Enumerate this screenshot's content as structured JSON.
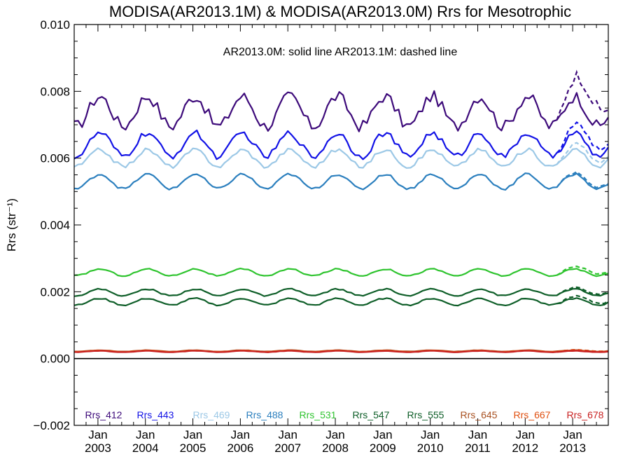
{
  "chart_data": {
    "type": "line",
    "title": "MODISA(AR2013.1M) & MODISA(AR2013.0M)  Rrs for Mesotrophic",
    "annotation": "AR2013.0M: solid line   AR2013.1M: dashed line",
    "ylabel": "Rrs (str⁻¹)",
    "ylim": [
      -0.002,
      0.01
    ],
    "xlim": [
      "2002-07",
      "2013-10"
    ],
    "yticks": [
      "−0.002",
      "0.000",
      "0.002",
      "0.004",
      "0.006",
      "0.008",
      "0.010"
    ],
    "xticks": [
      {
        "month": "Jan",
        "year": "2003"
      },
      {
        "month": "Jan",
        "year": "2004"
      },
      {
        "month": "Jan",
        "year": "2005"
      },
      {
        "month": "Jan",
        "year": "2006"
      },
      {
        "month": "Jan",
        "year": "2007"
      },
      {
        "month": "Jan",
        "year": "2008"
      },
      {
        "month": "Jan",
        "year": "2009"
      },
      {
        "month": "Jan",
        "year": "2010"
      },
      {
        "month": "Jan",
        "year": "2011"
      },
      {
        "month": "Jan",
        "year": "2012"
      },
      {
        "month": "Jan",
        "year": "2013"
      }
    ],
    "legend": "bottom",
    "series": [
      {
        "name": "Rrs_412",
        "color": "#3d0a7a",
        "mean": 0.0074,
        "amp": 0.00045,
        "noise": 0.00018,
        "dev": 0.0007
      },
      {
        "name": "Rrs_443",
        "color": "#1212e6",
        "mean": 0.0064,
        "amp": 0.00035,
        "noise": 0.0001,
        "dev": 0.0005
      },
      {
        "name": "Rrs_469",
        "color": "#9cc8e6",
        "mean": 0.006,
        "amp": 0.00025,
        "noise": 6e-05,
        "dev": 0.0002
      },
      {
        "name": "Rrs_488",
        "color": "#2b7fbe",
        "mean": 0.0053,
        "amp": 0.00022,
        "noise": 4e-05,
        "dev": 0.0001
      },
      {
        "name": "Rrs_531",
        "color": "#2fc42f",
        "mean": 0.00258,
        "amp": 0.0001,
        "noise": 2e-05,
        "dev": 8e-05
      },
      {
        "name": "Rrs_547",
        "color": "#0e5e28",
        "mean": 0.00198,
        "amp": 0.0001,
        "noise": 2e-05,
        "dev": 8e-05
      },
      {
        "name": "Rrs_555",
        "color": "#0e5e28",
        "mean": 0.0017,
        "amp": 0.0001,
        "noise": 2e-05,
        "dev": 8e-05
      },
      {
        "name": "Rrs_645",
        "color": "#a85020",
        "mean": 0.00023,
        "amp": 2e-05,
        "noise": 5e-06,
        "dev": 2e-05
      },
      {
        "name": "Rrs_667",
        "color": "#e05010",
        "mean": 0.00022,
        "amp": 2e-05,
        "noise": 5e-06,
        "dev": 2e-05
      },
      {
        "name": "Rrs_678",
        "color": "#c82020",
        "mean": 0.00021,
        "amp": 2e-05,
        "noise": 5e-06,
        "dev": 2e-05
      }
    ]
  }
}
